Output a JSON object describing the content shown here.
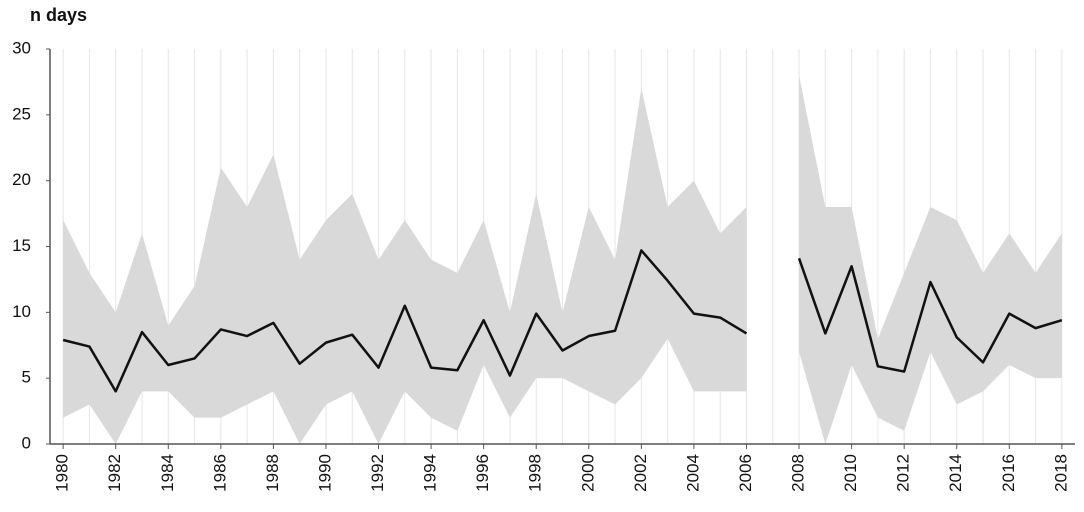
{
  "chart_data": {
    "type": "band-line",
    "y_label": "n days",
    "x": [
      1980,
      1981,
      1982,
      1983,
      1984,
      1985,
      1986,
      1987,
      1988,
      1989,
      1990,
      1991,
      1992,
      1993,
      1994,
      1995,
      1996,
      1997,
      1998,
      1999,
      2000,
      2001,
      2002,
      2003,
      2004,
      2005,
      2006,
      2007,
      2008,
      2009,
      2010,
      2011,
      2012,
      2013,
      2014,
      2015,
      2016,
      2017,
      2018
    ],
    "band": {
      "color": "#d9d9d9",
      "upper": [
        17,
        13,
        10,
        16,
        9,
        12,
        21,
        18,
        22,
        14,
        17,
        19,
        14,
        17,
        14,
        13,
        17,
        10,
        19,
        10,
        18,
        14,
        27,
        18,
        20,
        16,
        18,
        null,
        28,
        18,
        18,
        8,
        13,
        18,
        17,
        13,
        16,
        13,
        16
      ],
      "lower": [
        2,
        3,
        0,
        4,
        4,
        2,
        2,
        3,
        4,
        0,
        3,
        4,
        0,
        4,
        2,
        1,
        6,
        2,
        5,
        5,
        4,
        3,
        5,
        8,
        4,
        4,
        4,
        null,
        7,
        0,
        6,
        2,
        1,
        7,
        3,
        4,
        6,
        5,
        5
      ]
    },
    "line": {
      "color": "#111111",
      "values": [
        7.9,
        7.4,
        4.0,
        8.5,
        6.0,
        6.5,
        8.7,
        8.2,
        9.2,
        6.1,
        7.7,
        8.3,
        5.8,
        10.5,
        5.8,
        5.6,
        9.4,
        5.2,
        9.9,
        7.1,
        8.2,
        8.6,
        14.7,
        12.4,
        9.9,
        9.6,
        8.4,
        null,
        14.1,
        8.4,
        13.5,
        5.9,
        5.5,
        12.3,
        8.1,
        6.2,
        9.9,
        8.8,
        9.4
      ]
    },
    "xlim": [
      1979.5,
      2018.5
    ],
    "xticks": [
      1980,
      1982,
      1984,
      1986,
      1988,
      1990,
      1992,
      1994,
      1996,
      1998,
      2000,
      2002,
      2004,
      2006,
      2008,
      2010,
      2012,
      2014,
      2016,
      2018
    ],
    "ylim": [
      0,
      30
    ],
    "yticks": [
      0,
      5,
      10,
      15,
      20,
      25,
      30
    ],
    "grid_x": true
  }
}
